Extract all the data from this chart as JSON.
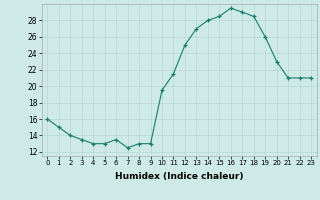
{
  "x": [
    0,
    1,
    2,
    3,
    4,
    5,
    6,
    7,
    8,
    9,
    10,
    11,
    12,
    13,
    14,
    15,
    16,
    17,
    18,
    19,
    20,
    21,
    22,
    23
  ],
  "y": [
    16,
    15,
    14,
    13.5,
    13,
    13,
    13.5,
    12.5,
    13,
    13,
    19.5,
    21.5,
    25,
    27,
    28,
    28.5,
    29.5,
    29,
    28.5,
    26,
    23,
    21,
    21,
    21
  ],
  "line_color": "#1a7a6e",
  "marker_color": "#1a7a6e",
  "bg_color": "#ceeae7",
  "grid_color": "#b8d8d5",
  "xlabel": "Humidex (Indice chaleur)",
  "ylabel_ticks": [
    12,
    14,
    16,
    18,
    20,
    22,
    24,
    26,
    28
  ],
  "xlim": [
    -0.5,
    23.5
  ],
  "ylim": [
    11.5,
    30.0
  ],
  "xtick_labels": [
    "0",
    "1",
    "2",
    "3",
    "4",
    "5",
    "6",
    "7",
    "8",
    "9",
    "10",
    "11",
    "12",
    "13",
    "14",
    "15",
    "16",
    "17",
    "18",
    "19",
    "20",
    "21",
    "22",
    "23"
  ]
}
